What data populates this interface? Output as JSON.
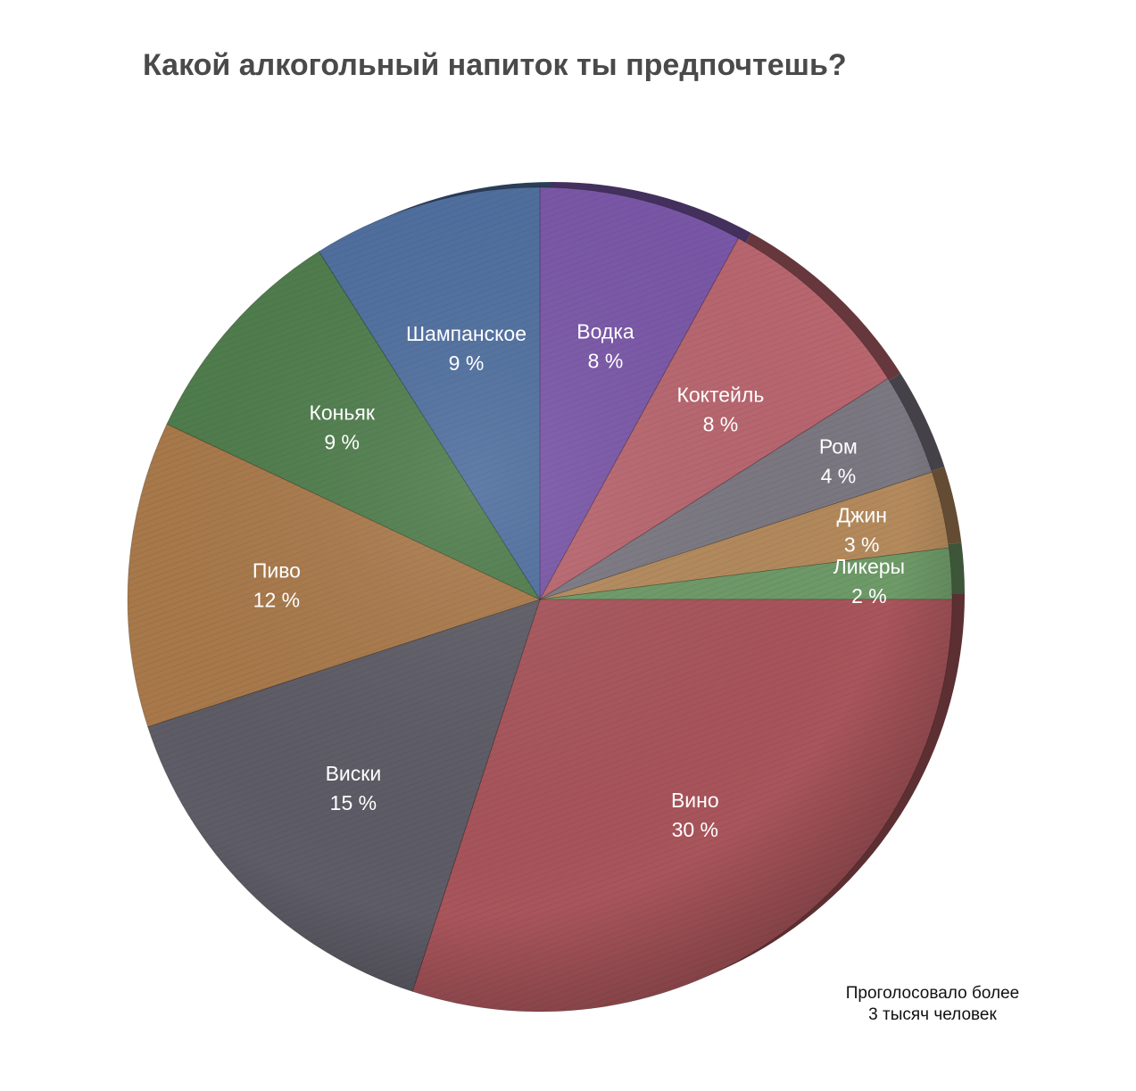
{
  "chart_data": {
    "type": "pie",
    "title": "Какой алкогольный напиток ты предпочтешь?",
    "slices": [
      {
        "label": "Водка",
        "value": 8,
        "value_label": "8 %",
        "color": "#7a57a8"
      },
      {
        "label": "Коктейль",
        "value": 8,
        "value_label": "8 %",
        "color": "#b9666f"
      },
      {
        "label": "Ром",
        "value": 4,
        "value_label": "4 %",
        "color": "#7b7882"
      },
      {
        "label": "Джин",
        "value": 3,
        "value_label": "3 %",
        "color": "#b48a5c"
      },
      {
        "label": "Ликеры",
        "value": 2,
        "value_label": "2 %",
        "color": "#6e9a68"
      },
      {
        "label": "Вино",
        "value": 30,
        "value_label": "30 %",
        "color": "#a8555b"
      },
      {
        "label": "Виски",
        "value": 15,
        "value_label": "15 %",
        "color": "#5e5c66"
      },
      {
        "label": "Пиво",
        "value": 12,
        "value_label": "12 %",
        "color": "#a9794a"
      },
      {
        "label": "Коньяк",
        "value": 9,
        "value_label": "9 %",
        "color": "#4f7d4c"
      },
      {
        "label": "Шампанское",
        "value": 9,
        "value_label": "9 %",
        "color": "#4f6f9f"
      }
    ]
  },
  "footnote": {
    "line1": "Проголосовало более",
    "line2": "3 тысяч человек"
  }
}
